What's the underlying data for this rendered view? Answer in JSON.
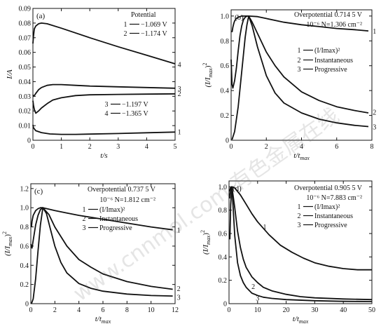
{
  "figure": {
    "watermark": "www.cnnmol.com 有色金属在线"
  },
  "chart_data": [
    {
      "id": "a",
      "type": "line",
      "panel_label": "(a)",
      "xlabel": "t/s",
      "ylabel": "I/A",
      "xlim": [
        0,
        5
      ],
      "ylim": [
        0,
        0.09
      ],
      "xticks": [
        0,
        1,
        2,
        3,
        4,
        5
      ],
      "yticks": [
        0,
        0.01,
        0.02,
        0.03,
        0.04,
        0.05,
        0.06,
        0.07,
        0.08,
        0.09
      ],
      "ytick_labels": [
        "0",
        "0.01",
        "0.02",
        "0.03",
        "0.04",
        "0.05",
        "0.06",
        "0.07",
        "0.08",
        "0.09"
      ],
      "legend_title": "Potential",
      "legend": [
        {
          "num": "1",
          "text": "−1.069 V"
        },
        {
          "num": "2",
          "text": "−1.174 V"
        },
        {
          "num": "3",
          "text": "−1.197 V"
        },
        {
          "num": "4",
          "text": "−1.365 V"
        }
      ],
      "series": [
        {
          "name": "1",
          "x": [
            0,
            0.02,
            0.1,
            0.3,
            0.6,
            1.0,
            1.5,
            2.0,
            3.0,
            4.0,
            5.0
          ],
          "values": [
            0.0105,
            0.0085,
            0.0065,
            0.0052,
            0.0043,
            0.004,
            0.004,
            0.0042,
            0.0046,
            0.0051,
            0.0056
          ]
        },
        {
          "name": "2",
          "x": [
            0,
            0.02,
            0.05,
            0.1,
            0.2,
            0.3,
            0.5,
            0.7,
            1.0,
            1.5,
            2.0,
            3.0,
            4.0,
            5.0
          ],
          "values": [
            0.027,
            0.024,
            0.021,
            0.0185,
            0.02,
            0.022,
            0.025,
            0.0275,
            0.029,
            0.0305,
            0.031,
            0.0313,
            0.0315,
            0.0317
          ]
        },
        {
          "name": "3",
          "x": [
            0,
            0.02,
            0.05,
            0.1,
            0.2,
            0.3,
            0.5,
            0.7,
            1.0,
            1.5,
            2.0,
            3.0,
            4.0,
            5.0
          ],
          "values": [
            0.031,
            0.03,
            0.0305,
            0.032,
            0.0345,
            0.036,
            0.0375,
            0.038,
            0.038,
            0.0375,
            0.037,
            0.0365,
            0.036,
            0.0355
          ]
        },
        {
          "name": "4",
          "x": [
            0,
            0.02,
            0.05,
            0.1,
            0.2,
            0.3,
            0.5,
            1.0,
            2.0,
            3.0,
            4.0,
            5.0
          ],
          "values": [
            0.066,
            0.071,
            0.076,
            0.078,
            0.0795,
            0.08,
            0.0795,
            0.0765,
            0.07,
            0.0638,
            0.058,
            0.0522
          ]
        }
      ],
      "curve_labels": [
        {
          "text": "1",
          "x": 5.15,
          "y": 0.006
        },
        {
          "text": "2",
          "x": 5.15,
          "y": 0.032
        },
        {
          "text": "3",
          "x": 5.15,
          "y": 0.0355
        },
        {
          "text": "4",
          "x": 5.15,
          "y": 0.052
        }
      ]
    },
    {
      "id": "b",
      "type": "line",
      "panel_label": "(b)",
      "xlabel": "t/t",
      "xlabel_sub": "max",
      "ylabel": "(I/I",
      "ylabel_sub": "max",
      "ylabel_end": ")",
      "ylabel_sup": "2",
      "xlim": [
        0,
        8
      ],
      "ylim": [
        0,
        1.05
      ],
      "xticks": [
        0,
        2,
        4,
        6,
        8
      ],
      "yticks": [
        0,
        0.2,
        0.4,
        0.6,
        0.8,
        1.0
      ],
      "ytick_labels": [
        "0",
        "0.2",
        "0.4",
        "0.6",
        "0.8",
        "1.0"
      ],
      "info": [
        "Overpotential 0.714 5 V",
        "10⁻⁶ N=1.306 cm⁻²"
      ],
      "legend": [
        {
          "num": "1",
          "text": "(I/Imax)²"
        },
        {
          "num": "2",
          "text": "Instantaneous"
        },
        {
          "num": "3",
          "text": "Progressive"
        }
      ],
      "series": [
        {
          "name": "1",
          "x": [
            0,
            0.05,
            0.1,
            0.2,
            0.3,
            0.4,
            0.5,
            0.6,
            0.7,
            0.8,
            0.9,
            1.0,
            1.5,
            2.0,
            3.0,
            4.0,
            5.0,
            6.0,
            7.0,
            7.8
          ],
          "values": [
            0.65,
            0.45,
            0.42,
            0.48,
            0.58,
            0.72,
            0.84,
            0.92,
            0.97,
            0.99,
            1.0,
            1.0,
            0.995,
            0.98,
            0.95,
            0.93,
            0.915,
            0.9,
            0.89,
            0.88
          ]
        },
        {
          "name": "2",
          "x": [
            0.05,
            0.1,
            0.15,
            0.2,
            0.3,
            0.4,
            0.5,
            0.6,
            0.7,
            0.8,
            0.9,
            1.0,
            1.2,
            1.5,
            2.0,
            2.5,
            3.0,
            4.0,
            5.0,
            6.0,
            7.0,
            7.8
          ],
          "values": [
            0.87,
            0.91,
            0.94,
            0.96,
            0.98,
            0.99,
            0.995,
            1.0,
            1.0,
            1.0,
            1.0,
            1.0,
            0.95,
            0.86,
            0.71,
            0.6,
            0.51,
            0.39,
            0.32,
            0.27,
            0.24,
            0.22
          ]
        },
        {
          "name": "3",
          "x": [
            0.05,
            0.2,
            0.4,
            0.6,
            0.8,
            0.9,
            1.0,
            1.2,
            1.5,
            2.0,
            2.5,
            3.0,
            4.0,
            5.0,
            6.0,
            7.0,
            7.8
          ],
          "values": [
            0.005,
            0.07,
            0.27,
            0.55,
            0.83,
            0.93,
            1.0,
            0.92,
            0.75,
            0.52,
            0.38,
            0.3,
            0.22,
            0.17,
            0.14,
            0.12,
            0.11
          ]
        }
      ],
      "curve_labels": [
        {
          "text": "1",
          "x": 8.15,
          "y": 0.88
        },
        {
          "text": "2",
          "x": 8.15,
          "y": 0.23
        },
        {
          "text": "3",
          "x": 8.15,
          "y": 0.11
        }
      ]
    },
    {
      "id": "c",
      "type": "line",
      "panel_label": "(c)",
      "xlabel": "t/t",
      "xlabel_sub": "max",
      "ylabel": "(I/I",
      "ylabel_sub": "max",
      "ylabel_end": ")",
      "ylabel_sup": "2",
      "xlim": [
        0,
        12
      ],
      "ylim": [
        0,
        1.25
      ],
      "xticks": [
        0,
        2,
        4,
        6,
        8,
        10,
        12
      ],
      "yticks": [
        0,
        0.2,
        0.4,
        0.6,
        0.8,
        1.0,
        1.2
      ],
      "ytick_labels": [
        "0",
        "0.2",
        "0.4",
        "0.6",
        "0.8",
        "1.0",
        "1.2"
      ],
      "info": [
        "Overpotential 0.737 5 V",
        "10⁻⁶ N=1.812 cm⁻²"
      ],
      "legend": [
        {
          "num": "1",
          "text": "(I/Imax)²"
        },
        {
          "num": "2",
          "text": "Instantaneous"
        },
        {
          "num": "3",
          "text": "Progressive"
        }
      ],
      "series": [
        {
          "name": "1",
          "x": [
            0,
            0.1,
            0.2,
            0.4,
            0.6,
            0.8,
            1.0,
            1.5,
            2.0,
            3.0,
            4.0,
            6.0,
            8.0,
            10.0,
            11.8
          ],
          "values": [
            0.62,
            0.58,
            0.66,
            0.82,
            0.92,
            0.98,
            1.0,
            0.985,
            0.97,
            0.945,
            0.92,
            0.88,
            0.84,
            0.8,
            0.77
          ]
        },
        {
          "name": "2",
          "x": [
            0.05,
            0.1,
            0.2,
            0.4,
            0.6,
            0.8,
            1.0,
            1.5,
            2.0,
            3.0,
            4.0,
            5.0,
            6.0,
            8.0,
            10.0,
            11.8
          ],
          "values": [
            0.8,
            0.86,
            0.92,
            0.97,
            0.99,
            1.0,
            1.0,
            0.93,
            0.8,
            0.6,
            0.46,
            0.38,
            0.31,
            0.23,
            0.18,
            0.15
          ]
        },
        {
          "name": "3",
          "x": [
            0.05,
            0.2,
            0.4,
            0.6,
            0.8,
            1.0,
            1.3,
            1.6,
            2.0,
            2.5,
            3.0,
            4.0,
            5.0,
            6.0,
            8.0,
            10.0,
            11.8
          ],
          "values": [
            0.0,
            0.05,
            0.26,
            0.55,
            0.82,
            1.0,
            0.94,
            0.79,
            0.6,
            0.43,
            0.32,
            0.21,
            0.16,
            0.13,
            0.1,
            0.085,
            0.08
          ]
        }
      ],
      "curve_labels": [
        {
          "text": "1",
          "x": 12.3,
          "y": 0.77
        },
        {
          "text": "2",
          "x": 12.3,
          "y": 0.16
        },
        {
          "text": "3",
          "x": 12.3,
          "y": 0.07
        }
      ]
    },
    {
      "id": "d",
      "type": "line",
      "panel_label": "(d)",
      "xlabel": "t/t",
      "xlabel_sub": "max",
      "ylabel": "(I/I",
      "ylabel_sub": "max",
      "ylabel_end": ")",
      "ylabel_sup": "2",
      "xlim": [
        0,
        50
      ],
      "ylim": [
        0,
        1.05
      ],
      "xticks": [
        0,
        10,
        20,
        30,
        40,
        50
      ],
      "yticks": [
        0,
        0.2,
        0.4,
        0.6,
        0.8,
        1.0
      ],
      "ytick_labels": [
        "0",
        "0.2",
        "0.4",
        "0.6",
        "0.8",
        "1.0"
      ],
      "info": [
        "Overpotential 0.905 5 V",
        "10⁻⁶ N=7.883 cm⁻²"
      ],
      "legend": [
        {
          "num": "1",
          "text": "(I/Imax)²"
        },
        {
          "num": "2",
          "text": "Instantaneous"
        },
        {
          "num": "3",
          "text": "Progressive"
        }
      ],
      "series": [
        {
          "name": "1",
          "x": [
            0.2,
            0.5,
            1.0,
            2.0,
            4.0,
            6.0,
            8.0,
            10.0,
            14.0,
            18.0,
            22.0,
            26.0,
            30.0,
            35.0,
            40.0,
            45.0,
            50.0
          ],
          "values": [
            0.96,
            0.99,
            1.0,
            0.99,
            0.93,
            0.85,
            0.77,
            0.7,
            0.59,
            0.5,
            0.44,
            0.39,
            0.35,
            0.32,
            0.3,
            0.29,
            0.29
          ]
        },
        {
          "name": "2",
          "x": [
            0.2,
            0.5,
            1.0,
            2.0,
            3.0,
            4.0,
            5.0,
            6.0,
            8.0,
            10.0,
            12.0,
            15.0,
            20.0,
            25.0,
            30.0,
            40.0,
            50.0
          ],
          "values": [
            0.9,
            0.97,
            1.0,
            0.82,
            0.62,
            0.48,
            0.38,
            0.31,
            0.23,
            0.18,
            0.14,
            0.11,
            0.08,
            0.06,
            0.05,
            0.04,
            0.035
          ]
        },
        {
          "name": "3",
          "x": [
            0.3,
            0.6,
            1.0,
            1.5,
            2.0,
            3.0,
            4.0,
            5.0,
            6.0,
            8.0,
            10.0,
            12.0,
            15.0,
            20.0,
            30.0,
            40.0,
            50.0
          ],
          "values": [
            0.55,
            0.85,
            1.0,
            0.8,
            0.58,
            0.35,
            0.24,
            0.18,
            0.14,
            0.09,
            0.07,
            0.055,
            0.045,
            0.035,
            0.025,
            0.02,
            0.018
          ]
        }
      ],
      "curve_labels": [
        {
          "text": "1",
          "x": 12.5,
          "y": 0.66
        },
        {
          "text": "2",
          "x": 8.5,
          "y": 0.15
        },
        {
          "text": "3",
          "x": 10.0,
          "y": 0.05
        }
      ]
    }
  ]
}
